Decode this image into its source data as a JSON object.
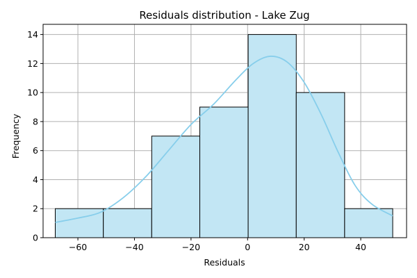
{
  "chart_data": {
    "type": "histogram",
    "title": "Residuals distribution - Lake Zug",
    "xlabel": "Residuals",
    "ylabel": "Frequency",
    "xlim": [
      -72.3,
      56.2
    ],
    "ylim": [
      0,
      14.7
    ],
    "xticks": [
      -60,
      -40,
      -20,
      0,
      20,
      40
    ],
    "yticks": [
      0,
      2,
      4,
      6,
      8,
      10,
      12,
      14
    ],
    "grid": true,
    "bins": [
      {
        "x0": -68.0,
        "x1": -51.0,
        "count": 2
      },
      {
        "x0": -51.0,
        "x1": -33.9,
        "count": 2
      },
      {
        "x0": -33.9,
        "x1": -16.9,
        "count": 7
      },
      {
        "x0": -16.9,
        "x1": 0.2,
        "count": 9
      },
      {
        "x0": 0.2,
        "x1": 17.2,
        "count": 14
      },
      {
        "x0": 17.2,
        "x1": 34.3,
        "count": 10
      },
      {
        "x0": 34.3,
        "x1": 51.3,
        "count": 2
      }
    ],
    "kde": {
      "x": [
        -68,
        -60,
        -52,
        -44,
        -36,
        -28,
        -20,
        -12,
        -4,
        2,
        8,
        14,
        20,
        26,
        32,
        38,
        44,
        51.3
      ],
      "y": [
        1.05,
        1.35,
        1.75,
        2.75,
        4.2,
        6.0,
        7.8,
        9.2,
        10.9,
        12.0,
        12.5,
        12.1,
        10.7,
        8.5,
        5.9,
        3.6,
        2.3,
        1.5
      ]
    },
    "colors": {
      "bar_fill": "#c2e6f4",
      "bar_edge": "#000000",
      "kde_line": "#87ceeb",
      "grid": "#b0b0b0"
    }
  }
}
